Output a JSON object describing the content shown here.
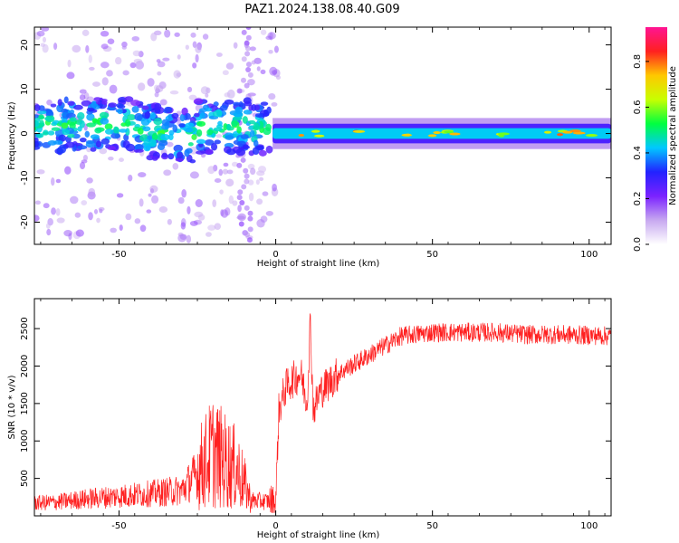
{
  "title": "PAZ1.2024.138.08.40.G09",
  "chart_data": [
    {
      "type": "heatmap",
      "xlabel": "Height of straight line (km)",
      "ylabel": "Frequency (Hz)",
      "xlim": [
        -77,
        107
      ],
      "ylim": [
        -25,
        24
      ],
      "xticks": [
        -50,
        0,
        50,
        100
      ],
      "yticks": [
        -20,
        -10,
        0,
        10,
        20
      ],
      "colorbar": {
        "label": "Normalized spectral amplitude",
        "range": [
          0.0,
          0.95
        ],
        "ticks": [
          0.0,
          0.2,
          0.4,
          0.6,
          0.8
        ],
        "colormap": [
          "#ffffff",
          "#c7a8f0",
          "#7b22ff",
          "#2222ff",
          "#00c8ff",
          "#00ff40",
          "#c8ff00",
          "#ffc800",
          "#ff2020",
          "#ff1493"
        ]
      },
      "ridge": {
        "description_points": [
          {
            "x": -75,
            "freq": 2
          },
          {
            "x": -50,
            "freq": 2
          },
          {
            "x": -30,
            "freq": -1
          },
          {
            "x": -20,
            "freq": 2
          },
          {
            "x": 0,
            "freq": 0
          },
          {
            "x": 105,
            "freq": 0
          }
        ],
        "amplitude_after_zero": 0.45
      }
    },
    {
      "type": "line",
      "xlabel": "Height of straight line (km)",
      "ylabel": "SNR (10 * v/v)",
      "xlim": [
        -77,
        107
      ],
      "ylim": [
        0,
        2900
      ],
      "xticks": [
        -50,
        0,
        50,
        100
      ],
      "yticks": [
        500,
        1000,
        1500,
        2000,
        2500
      ],
      "color": "#ff2020",
      "series": [
        {
          "x": [
            -77,
            -70,
            -60,
            -50,
            -40,
            -30,
            -20,
            -12,
            -8,
            -4,
            0,
            1,
            3,
            5,
            8,
            10,
            11,
            12,
            14,
            20,
            30,
            40,
            50,
            60,
            70,
            80,
            90,
            100,
            107
          ],
          "values": [
            150,
            160,
            200,
            230,
            260,
            300,
            700,
            500,
            180,
            170,
            180,
            1400,
            1700,
            1800,
            1900,
            1500,
            2600,
            1400,
            1650,
            1900,
            2150,
            2400,
            2450,
            2450,
            2450,
            2420,
            2420,
            2410,
            2400
          ]
        }
      ]
    }
  ]
}
